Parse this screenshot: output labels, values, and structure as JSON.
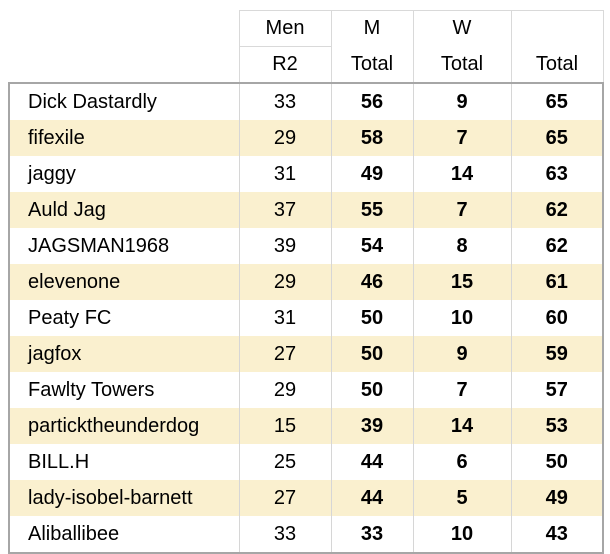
{
  "colors": {
    "row_alt_background": "#FAF0CF",
    "row_background": "#FFFFFF",
    "header_grid": "#D9D9D9",
    "body_grid": "#D6D6D6",
    "outer_border": "#A6A6A6",
    "text": "#000000"
  },
  "header": {
    "men_line1": "Men",
    "men_line2": "R2",
    "m_line1": "M",
    "m_line2": "Total",
    "w_line1": "W",
    "w_line2": "Total",
    "total_blank": "",
    "total_label": "Total"
  },
  "rows": [
    {
      "name": "Dick Dastardly",
      "men_r2": "33",
      "m_total": "56",
      "w_total": "9",
      "total": "65"
    },
    {
      "name": "fifexile",
      "men_r2": "29",
      "m_total": "58",
      "w_total": "7",
      "total": "65"
    },
    {
      "name": "jaggy",
      "men_r2": "31",
      "m_total": "49",
      "w_total": "14",
      "total": "63"
    },
    {
      "name": "Auld Jag",
      "men_r2": "37",
      "m_total": "55",
      "w_total": "7",
      "total": "62"
    },
    {
      "name": "JAGSMAN1968",
      "men_r2": "39",
      "m_total": "54",
      "w_total": "8",
      "total": "62"
    },
    {
      "name": "elevenone",
      "men_r2": "29",
      "m_total": "46",
      "w_total": "15",
      "total": "61"
    },
    {
      "name": "Peaty FC",
      "men_r2": "31",
      "m_total": "50",
      "w_total": "10",
      "total": "60"
    },
    {
      "name": "jagfox",
      "men_r2": "27",
      "m_total": "50",
      "w_total": "9",
      "total": "59"
    },
    {
      "name": "Fawlty Towers",
      "men_r2": "29",
      "m_total": "50",
      "w_total": "7",
      "total": "57"
    },
    {
      "name": "particktheunderdog",
      "men_r2": "15",
      "m_total": "39",
      "w_total": "14",
      "total": "53"
    },
    {
      "name": "BILL.H",
      "men_r2": "25",
      "m_total": "44",
      "w_total": "6",
      "total": "50"
    },
    {
      "name": "lady-isobel-barnett",
      "men_r2": "27",
      "m_total": "44",
      "w_total": "5",
      "total": "49"
    },
    {
      "name": "Aliballibee",
      "men_r2": "33",
      "m_total": "33",
      "w_total": "10",
      "total": "43"
    }
  ]
}
